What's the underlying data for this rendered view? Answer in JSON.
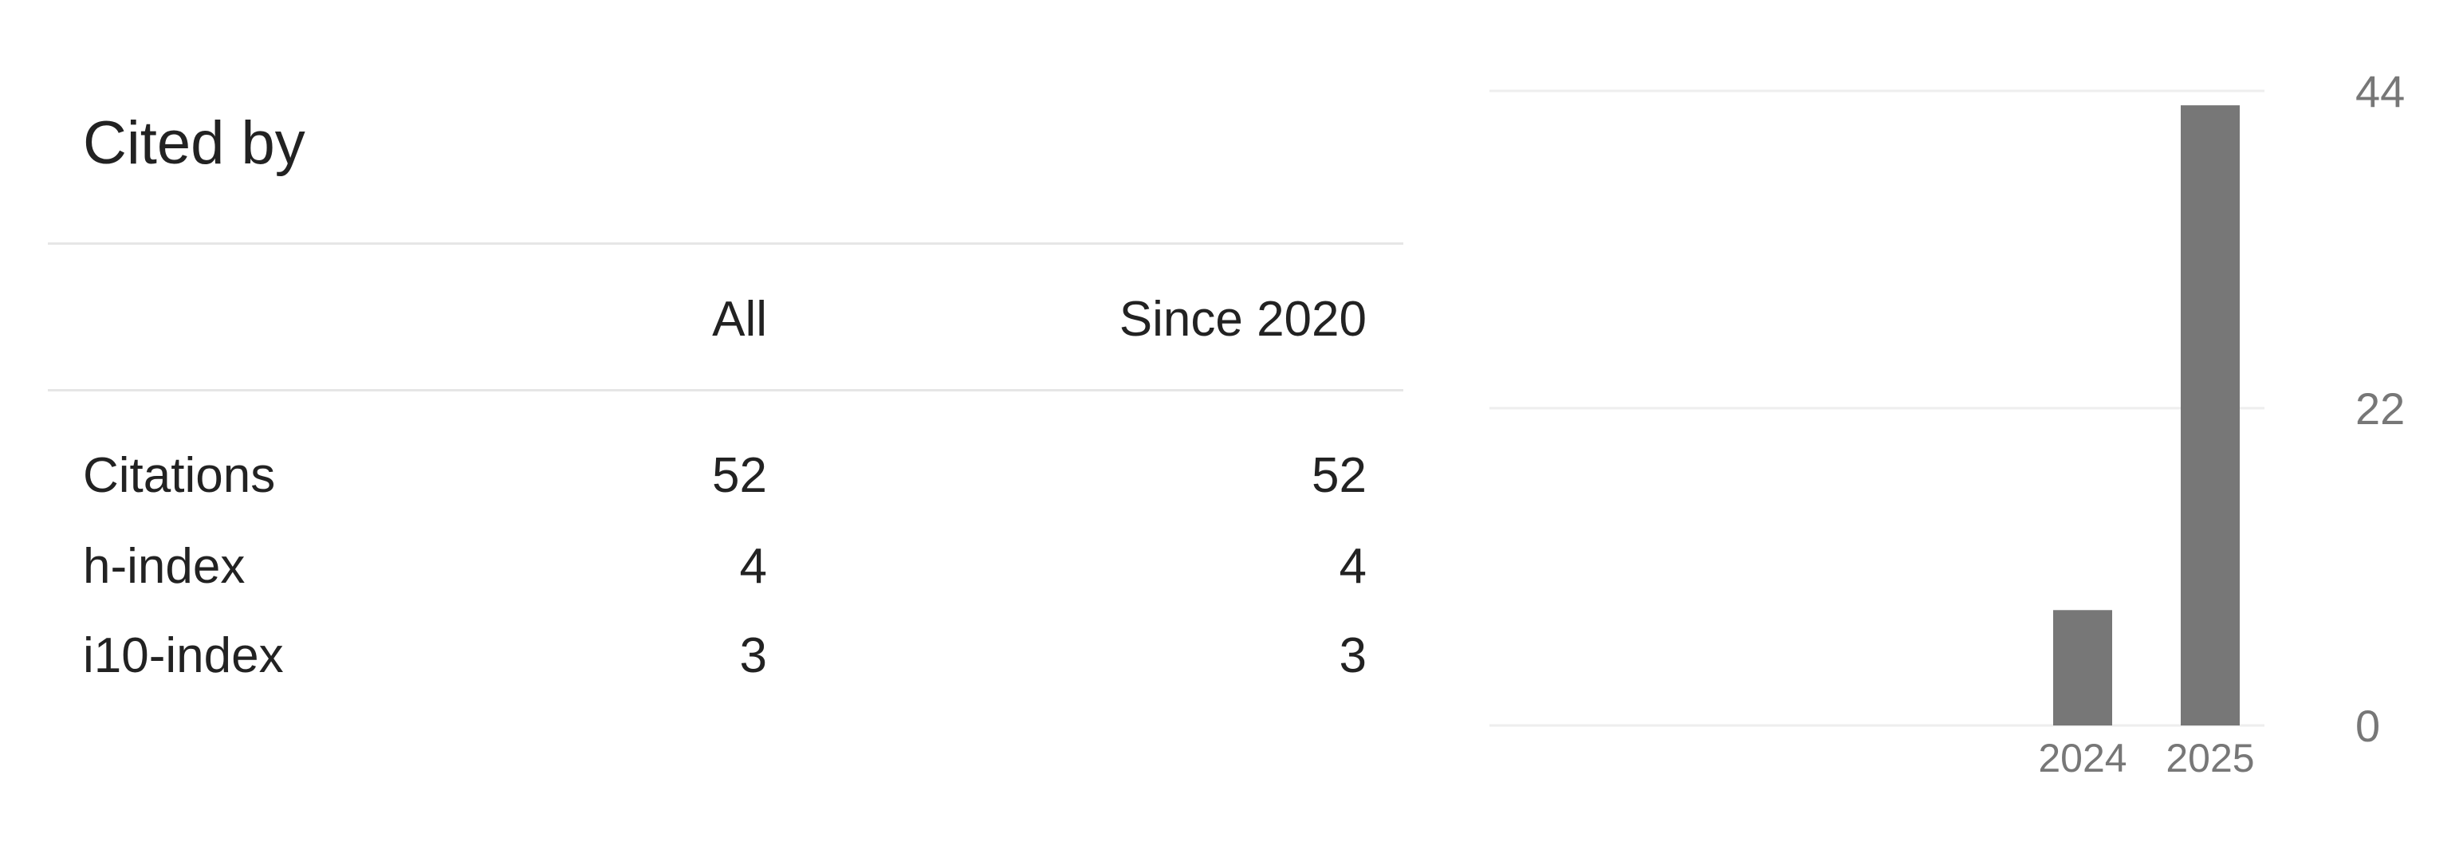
{
  "title": "Cited by",
  "table": {
    "headers": [
      "",
      "All",
      "Since 2020"
    ],
    "rows": [
      {
        "label": "Citations",
        "all": "52",
        "since": "52"
      },
      {
        "label": "h-index",
        "all": "4",
        "since": "4"
      },
      {
        "label": "i10-index",
        "all": "3",
        "since": "3"
      }
    ]
  },
  "chart_data": {
    "type": "bar",
    "categories": [
      "2024",
      "2025"
    ],
    "values": [
      8,
      43
    ],
    "ylim": [
      0,
      44
    ],
    "yticks": [
      "0",
      "22",
      "44"
    ],
    "grid": true,
    "bar_color": "#777777",
    "grid_color": "#eeeeee"
  }
}
